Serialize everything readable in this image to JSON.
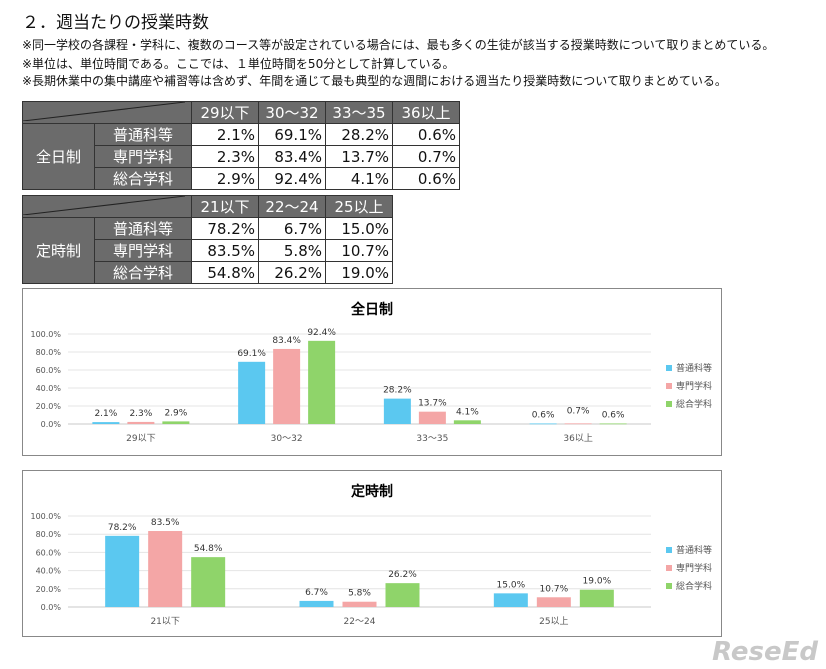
{
  "title": "２．週当たりの授業時数",
  "notes": [
    "※同一学校の各課程・学科に、複数のコース等が設定されている場合には、最も多くの生徒が該当する授業時数について取りまとめている。",
    "※単位は、単位時間である。ここでは、１単位時間を50分として計算している。",
    "※長期休業中の集中講座や補習等は含めず、年間を通じて最も典型的な週間における週当たり授業時数について取りまとめている。"
  ],
  "colors": {
    "普通科等": "#5bc8f0",
    "専門学科": "#f4a6a6",
    "総合学科": "#8fd46a"
  },
  "tables": [
    {
      "group": "全日制",
      "columns": [
        "29以下",
        "30～32",
        "33～35",
        "36以上"
      ],
      "rows": [
        {
          "label": "普通科等",
          "values": [
            "2.1%",
            "69.1%",
            "28.2%",
            "0.6%"
          ]
        },
        {
          "label": "専門学科",
          "values": [
            "2.3%",
            "83.4%",
            "13.7%",
            "0.7%"
          ]
        },
        {
          "label": "総合学科",
          "values": [
            "2.9%",
            "92.4%",
            "4.1%",
            "0.6%"
          ]
        }
      ]
    },
    {
      "group": "定時制",
      "columns": [
        "21以下",
        "22～24",
        "25以上"
      ],
      "rows": [
        {
          "label": "普通科等",
          "values": [
            "78.2%",
            "6.7%",
            "15.0%"
          ]
        },
        {
          "label": "専門学科",
          "values": [
            "83.5%",
            "5.8%",
            "10.7%"
          ]
        },
        {
          "label": "総合学科",
          "values": [
            "54.8%",
            "26.2%",
            "19.0%"
          ]
        }
      ]
    }
  ],
  "chart_data": [
    {
      "type": "bar",
      "title": "全日制",
      "categories": [
        "29以下",
        "30～32",
        "33～35",
        "36以上"
      ],
      "ylim": [
        0,
        100
      ],
      "yticks": [
        "0.0%",
        "20.0%",
        "40.0%",
        "60.0%",
        "80.0%",
        "100.0%"
      ],
      "grid": true,
      "legend": "right",
      "series": [
        {
          "name": "普通科等",
          "values": [
            2.1,
            69.1,
            28.2,
            0.6
          ]
        },
        {
          "name": "専門学科",
          "values": [
            2.3,
            83.4,
            13.7,
            0.7
          ]
        },
        {
          "name": "総合学科",
          "values": [
            2.9,
            92.4,
            4.1,
            0.6
          ]
        }
      ]
    },
    {
      "type": "bar",
      "title": "定時制",
      "categories": [
        "21以下",
        "22～24",
        "25以上"
      ],
      "ylim": [
        0,
        100
      ],
      "yticks": [
        "0.0%",
        "20.0%",
        "40.0%",
        "60.0%",
        "80.0%",
        "100.0%"
      ],
      "grid": true,
      "legend": "right",
      "series": [
        {
          "name": "普通科等",
          "values": [
            78.2,
            6.7,
            15.0
          ]
        },
        {
          "name": "専門学科",
          "values": [
            83.5,
            5.8,
            10.7
          ]
        },
        {
          "name": "総合学科",
          "values": [
            54.8,
            26.2,
            19.0
          ]
        }
      ]
    }
  ],
  "watermark": "ReseEd"
}
